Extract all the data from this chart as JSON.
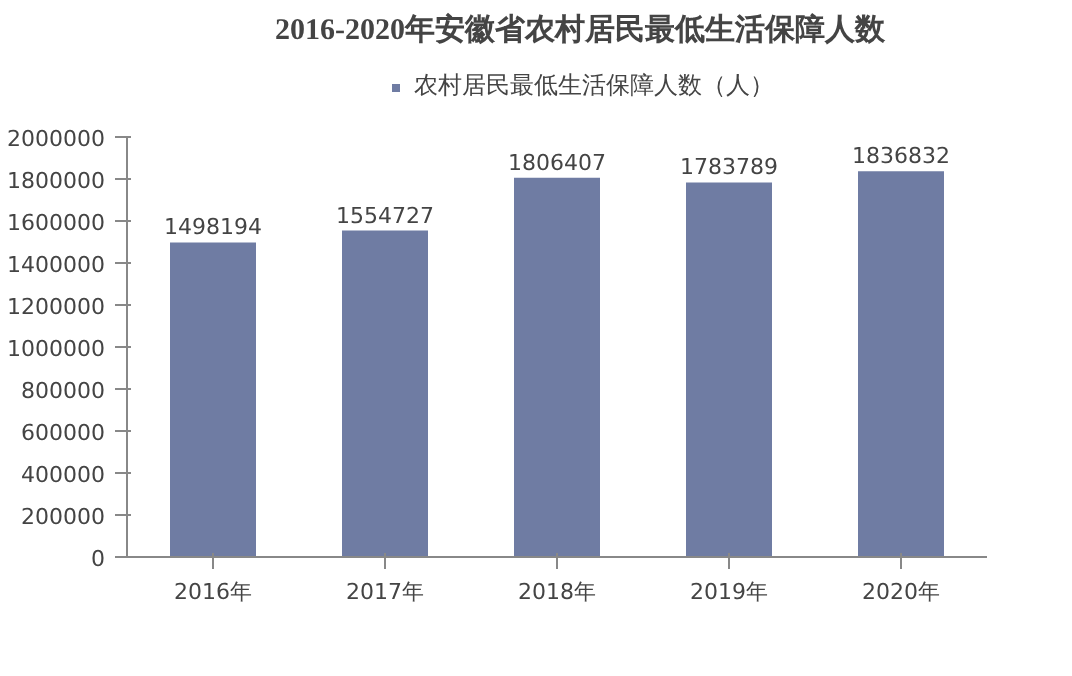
{
  "chart_data": {
    "type": "bar",
    "title": "2016-2020年安徽省农村居民最低生活保障人数",
    "categories": [
      "2016年",
      "2017年",
      "2018年",
      "2019年",
      "2020年"
    ],
    "series": [
      {
        "name": "农村居民最低生活保障人数（人）",
        "color": "#6f7ca3",
        "values": [
          1498194,
          1554727,
          1806407,
          1783789,
          1836832
        ]
      }
    ],
    "ylim": [
      0,
      2000000
    ],
    "yticks": [
      0,
      200000,
      400000,
      600000,
      800000,
      1000000,
      1200000,
      1400000,
      1600000,
      1800000,
      2000000
    ],
    "data_labels": true,
    "legend": "top",
    "grid": false
  }
}
